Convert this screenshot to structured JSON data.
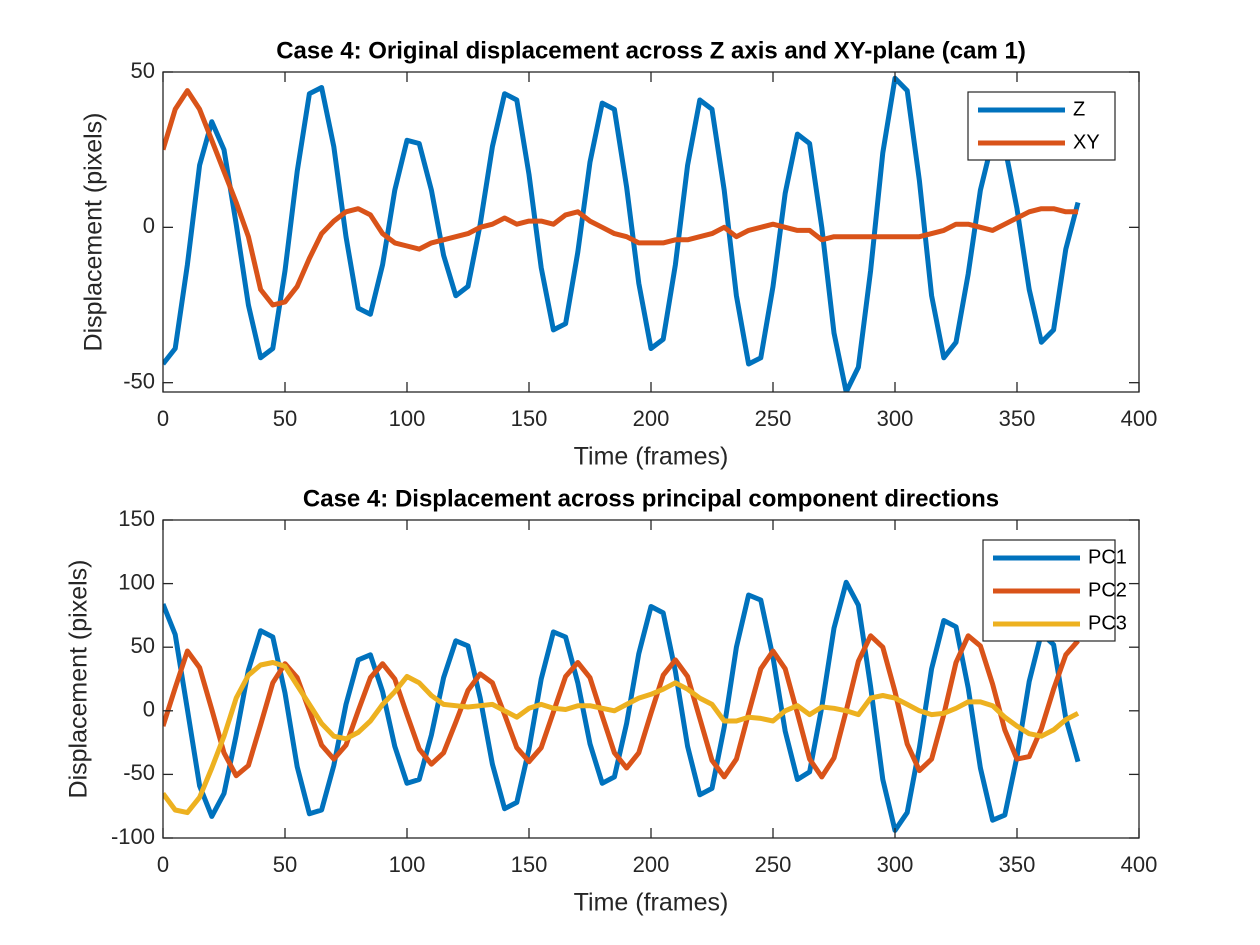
{
  "chart_data": [
    {
      "type": "line",
      "title": "Case 4: Original displacement across Z axis and XY-plane (cam 1)",
      "x_label": "Time (frames)",
      "y_label": "Displacement (pixels)",
      "x": [
        0,
        5,
        10,
        15,
        20,
        25,
        30,
        35,
        40,
        45,
        50,
        55,
        60,
        65,
        70,
        75,
        80,
        85,
        90,
        95,
        100,
        105,
        110,
        115,
        120,
        125,
        130,
        135,
        140,
        145,
        150,
        155,
        160,
        165,
        170,
        175,
        180,
        185,
        190,
        195,
        200,
        205,
        210,
        215,
        220,
        225,
        230,
        235,
        240,
        245,
        250,
        255,
        260,
        265,
        270,
        275,
        280,
        285,
        290,
        295,
        300,
        305,
        310,
        315,
        320,
        325,
        330,
        335,
        340,
        345,
        350,
        355,
        360,
        365,
        370,
        375
      ],
      "series": [
        {
          "name": "Z",
          "color": "#0072BD",
          "values": [
            -44,
            -39,
            -12,
            20,
            34,
            25,
            1,
            -25,
            -42,
            -39,
            -14,
            18,
            43,
            45,
            26,
            -3,
            -26,
            -28,
            -12,
            12,
            28,
            27,
            12,
            -9,
            -22,
            -19,
            1,
            26,
            43,
            41,
            17,
            -13,
            -33,
            -31,
            -8,
            21,
            40,
            38,
            13,
            -18,
            -39,
            -36,
            -12,
            20,
            41,
            38,
            12,
            -22,
            -44,
            -42,
            -19,
            11,
            30,
            27,
            0,
            -34,
            -53,
            -45,
            -14,
            24,
            48,
            44,
            15,
            -22,
            -42,
            -37,
            -15,
            12,
            28,
            26,
            6,
            -20,
            -37,
            -33,
            -7,
            8
          ]
        },
        {
          "name": "XY",
          "color": "#D95319",
          "values": [
            25,
            38,
            44,
            38,
            28,
            18,
            8,
            -3,
            -20,
            -25,
            -24,
            -19,
            -10,
            -2,
            2,
            5,
            6,
            4,
            -2,
            -5,
            -6,
            -7,
            -5,
            -4,
            -3,
            -2,
            0,
            1,
            3,
            1,
            2,
            2,
            1,
            4,
            5,
            2,
            0,
            -2,
            -3,
            -5,
            -5,
            -5,
            -4,
            -4,
            -3,
            -2,
            0,
            -3,
            -1,
            0,
            1,
            0,
            -1,
            -1,
            -4,
            -3,
            -3,
            -3,
            -3,
            -3,
            -3,
            -3,
            -3,
            -2,
            -1,
            1,
            1,
            0,
            -1,
            1,
            3,
            5,
            6,
            6,
            5,
            5
          ]
        }
      ],
      "xlim": [
        0,
        400
      ],
      "ylim": [
        -53,
        50
      ],
      "xticks": [
        0,
        50,
        100,
        150,
        200,
        250,
        300,
        350,
        400
      ],
      "yticks": [
        -50,
        0,
        50
      ],
      "legend": "northeast"
    },
    {
      "type": "line",
      "title": "Case 4: Displacement across principal component directions",
      "x_label": "Time (frames)",
      "y_label": "Displacement (pixels)",
      "x": [
        0,
        5,
        10,
        15,
        20,
        25,
        30,
        35,
        40,
        45,
        50,
        55,
        60,
        65,
        70,
        75,
        80,
        85,
        90,
        95,
        100,
        105,
        110,
        115,
        120,
        125,
        130,
        135,
        140,
        145,
        150,
        155,
        160,
        165,
        170,
        175,
        180,
        185,
        190,
        195,
        200,
        205,
        210,
        215,
        220,
        225,
        230,
        235,
        240,
        245,
        250,
        255,
        260,
        265,
        270,
        275,
        280,
        285,
        290,
        295,
        300,
        305,
        310,
        315,
        320,
        325,
        330,
        335,
        340,
        345,
        350,
        355,
        360,
        365,
        370,
        375
      ],
      "series": [
        {
          "name": "PC1",
          "color": "#0072BD",
          "values": [
            84,
            60,
            1,
            -59,
            -83,
            -65,
            -19,
            32,
            63,
            58,
            14,
            -44,
            -81,
            -78,
            -43,
            5,
            40,
            44,
            15,
            -28,
            -57,
            -54,
            -19,
            26,
            55,
            51,
            10,
            -42,
            -77,
            -72,
            -30,
            25,
            62,
            58,
            22,
            -26,
            -57,
            -52,
            -10,
            45,
            82,
            77,
            31,
            -28,
            -66,
            -61,
            -13,
            50,
            91,
            87,
            42,
            -16,
            -54,
            -48,
            3,
            65,
            101,
            83,
            19,
            -54,
            -94,
            -80,
            -29,
            33,
            71,
            66,
            18,
            -45,
            -86,
            -82,
            -36,
            23,
            61,
            52,
            -6,
            -40
          ]
        },
        {
          "name": "PC2",
          "color": "#D95319",
          "values": [
            -12,
            18,
            47,
            34,
            1,
            -33,
            -51,
            -43,
            -11,
            22,
            37,
            26,
            0,
            -27,
            -38,
            -27,
            0,
            26,
            37,
            25,
            -3,
            -30,
            -42,
            -33,
            -9,
            16,
            29,
            22,
            -3,
            -29,
            -40,
            -29,
            -1,
            27,
            38,
            26,
            -4,
            -33,
            -45,
            -33,
            -2,
            28,
            40,
            27,
            -6,
            -39,
            -52,
            -38,
            -2,
            33,
            47,
            33,
            -2,
            -38,
            -52,
            -37,
            0,
            39,
            59,
            50,
            15,
            -26,
            -47,
            -38,
            -3,
            38,
            59,
            51,
            21,
            -15,
            -38,
            -36,
            -14,
            17,
            44,
            55
          ]
        },
        {
          "name": "PC3",
          "color": "#EDB120",
          "values": [
            -65,
            -78,
            -80,
            -68,
            -45,
            -20,
            10,
            28,
            36,
            38,
            35,
            20,
            5,
            -10,
            -20,
            -22,
            -17,
            -8,
            5,
            15,
            27,
            22,
            12,
            5,
            4,
            3,
            4,
            5,
            0,
            -5,
            2,
            5,
            2,
            1,
            4,
            4,
            2,
            0,
            5,
            10,
            13,
            17,
            22,
            17,
            10,
            5,
            -8,
            -8,
            -5,
            -6,
            -8,
            0,
            4,
            -3,
            3,
            2,
            0,
            -3,
            10,
            12,
            10,
            5,
            0,
            -3,
            -2,
            2,
            7,
            7,
            4,
            -5,
            -12,
            -18,
            -20,
            -15,
            -7,
            -2
          ]
        }
      ],
      "xlim": [
        0,
        400
      ],
      "ylim": [
        -100,
        150
      ],
      "xticks": [
        0,
        50,
        100,
        150,
        200,
        250,
        300,
        350,
        400
      ],
      "yticks": [
        -100,
        -50,
        0,
        50,
        100,
        150
      ],
      "legend": "northeast"
    }
  ]
}
